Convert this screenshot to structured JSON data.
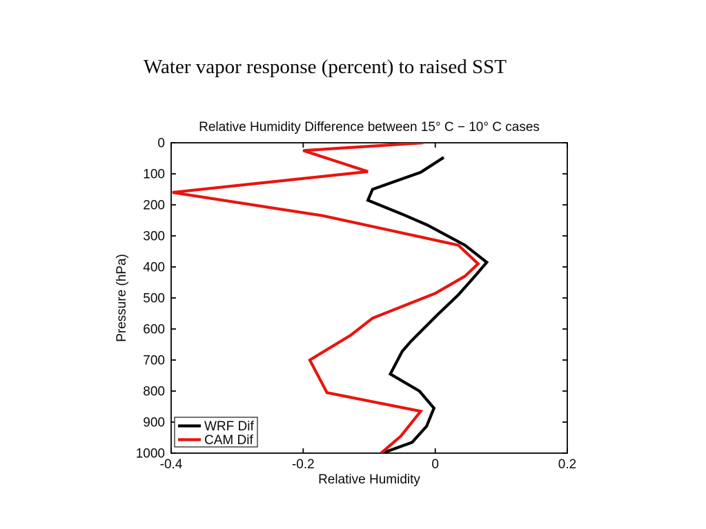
{
  "slide": {
    "title": "Water vapor response (percent) to raised SST"
  },
  "chart_data": {
    "type": "line",
    "title": "Relative Humidity Difference between 15° C − 10° C cases",
    "xlabel": "Relative Humidity",
    "ylabel": "Pressure (hPa)",
    "xlim": [
      -0.4,
      0.2
    ],
    "ylim": [
      0,
      1000
    ],
    "y_axis_reversed_visual": "0 hPa at top, 1000 hPa at bottom",
    "grid": false,
    "legend_position": "lower left",
    "x_ticks": [
      -0.4,
      -0.2,
      0,
      0.2
    ],
    "x_tick_labels": [
      "-0.4",
      "-0.2",
      "0",
      "0.2"
    ],
    "y_ticks": [
      0,
      100,
      200,
      300,
      400,
      500,
      600,
      700,
      800,
      900,
      1000
    ],
    "y_tick_labels": [
      "0",
      "100",
      "200",
      "300",
      "400",
      "500",
      "600",
      "700",
      "800",
      "900",
      "1000"
    ],
    "series": [
      {
        "name": "WRF Dif",
        "color": "#000000",
        "points_format": "[pressure_hPa, relative_humidity_difference]",
        "points": [
          [
            47,
            0.013
          ],
          [
            95,
            -0.022
          ],
          [
            150,
            -0.095
          ],
          [
            185,
            -0.102
          ],
          [
            230,
            -0.05
          ],
          [
            265,
            -0.012
          ],
          [
            330,
            0.045
          ],
          [
            385,
            0.078
          ],
          [
            430,
            0.06
          ],
          [
            490,
            0.035
          ],
          [
            555,
            0.003
          ],
          [
            640,
            -0.037
          ],
          [
            672,
            -0.05
          ],
          [
            745,
            -0.068
          ],
          [
            800,
            -0.024
          ],
          [
            855,
            -0.002
          ],
          [
            913,
            -0.013
          ],
          [
            965,
            -0.035
          ],
          [
            1000,
            -0.08
          ]
        ]
      },
      {
        "name": "CAM Dif",
        "color": "#e8150f",
        "points_format": "[pressure_hPa, relative_humidity_difference]",
        "points": [
          [
            0,
            -0.018
          ],
          [
            25,
            -0.2
          ],
          [
            93,
            -0.102
          ],
          [
            160,
            -0.398
          ],
          [
            235,
            -0.17
          ],
          [
            330,
            0.035
          ],
          [
            390,
            0.065
          ],
          [
            430,
            0.045
          ],
          [
            485,
            0.0
          ],
          [
            565,
            -0.095
          ],
          [
            620,
            -0.128
          ],
          [
            700,
            -0.19
          ],
          [
            805,
            -0.164
          ],
          [
            865,
            -0.022
          ],
          [
            945,
            -0.052
          ],
          [
            1000,
            -0.082
          ]
        ]
      }
    ]
  }
}
